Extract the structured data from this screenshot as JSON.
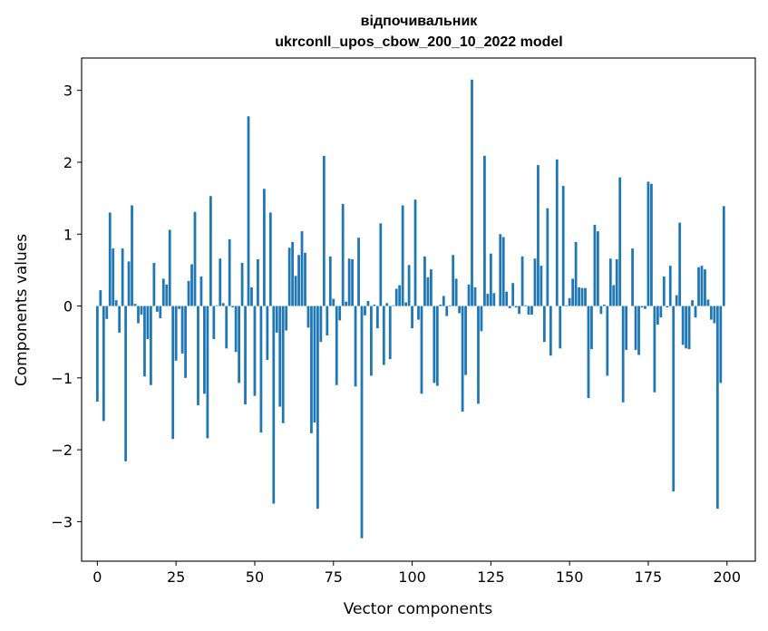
{
  "chart_data": {
    "type": "bar",
    "title": "відпочивальник",
    "subtitle": "ukrconll_upos_cbow_200_10_2022 model",
    "xlabel": "Vector components",
    "ylabel": "Components values",
    "xlim": [
      -5,
      209
    ],
    "ylim": [
      -3.55,
      3.45
    ],
    "xticks": [
      0,
      25,
      50,
      75,
      100,
      125,
      150,
      175,
      200
    ],
    "xtick_labels": [
      "0",
      "25",
      "50",
      "75",
      "100",
      "125",
      "150",
      "175",
      "200"
    ],
    "yticks": [
      -3,
      -2,
      -1,
      0,
      1,
      2,
      3
    ],
    "ytick_labels": [
      "−3",
      "−2",
      "−1",
      "0",
      "1",
      "2",
      "3"
    ],
    "grid": false,
    "bar_color": "#1f77b4",
    "x": [
      0,
      1,
      2,
      3,
      4,
      5,
      6,
      7,
      8,
      9,
      10,
      11,
      12,
      13,
      14,
      15,
      16,
      17,
      18,
      19,
      20,
      21,
      22,
      23,
      24,
      25,
      26,
      27,
      28,
      29,
      30,
      31,
      32,
      33,
      34,
      35,
      36,
      37,
      38,
      39,
      40,
      41,
      42,
      43,
      44,
      45,
      46,
      47,
      48,
      49,
      50,
      51,
      52,
      53,
      54,
      55,
      56,
      57,
      58,
      59,
      60,
      61,
      62,
      63,
      64,
      65,
      66,
      67,
      68,
      69,
      70,
      71,
      72,
      73,
      74,
      75,
      76,
      77,
      78,
      79,
      80,
      81,
      82,
      83,
      84,
      85,
      86,
      87,
      88,
      89,
      90,
      91,
      92,
      93,
      94,
      95,
      96,
      97,
      98,
      99,
      100,
      101,
      102,
      103,
      104,
      105,
      106,
      107,
      108,
      109,
      110,
      111,
      112,
      113,
      114,
      115,
      116,
      117,
      118,
      119,
      120,
      121,
      122,
      123,
      124,
      125,
      126,
      127,
      128,
      129,
      130,
      131,
      132,
      133,
      134,
      135,
      136,
      137,
      138,
      139,
      140,
      141,
      142,
      143,
      144,
      145,
      146,
      147,
      148,
      149,
      150,
      151,
      152,
      153,
      154,
      155,
      156,
      157,
      158,
      159,
      160,
      161,
      162,
      163,
      164,
      165,
      166,
      167,
      168,
      169,
      170,
      171,
      172,
      173,
      174,
      175,
      176,
      177,
      178,
      179,
      180,
      181,
      182,
      183,
      184,
      185,
      186,
      187,
      188,
      189,
      190,
      191,
      192,
      193,
      194,
      195,
      196,
      197,
      198,
      199
    ],
    "values": [
      -1.33,
      0.22,
      -1.6,
      -0.18,
      1.3,
      0.8,
      0.08,
      -0.37,
      0.8,
      -2.16,
      0.62,
      1.4,
      0.03,
      -0.24,
      -0.12,
      -0.98,
      -0.46,
      -1.1,
      0.6,
      -0.08,
      -0.17,
      0.38,
      0.3,
      1.06,
      -1.85,
      -0.76,
      -0.04,
      -0.66,
      -1.0,
      0.35,
      0.58,
      1.31,
      -1.38,
      0.41,
      -1.22,
      -1.84,
      1.53,
      -0.46,
      0.01,
      0.66,
      0.04,
      -0.59,
      0.93,
      -0.02,
      -0.64,
      -1.07,
      0.6,
      -1.37,
      2.64,
      0.26,
      -1.25,
      0.65,
      -1.76,
      1.63,
      -0.75,
      1.3,
      -2.75,
      -0.37,
      -1.4,
      -1.63,
      -0.34,
      0.81,
      0.89,
      0.42,
      0.71,
      1.04,
      0.74,
      -0.3,
      -1.77,
      -1.62,
      -2.82,
      -0.5,
      2.09,
      -0.41,
      0.69,
      0.1,
      -1.1,
      -0.2,
      1.42,
      0.06,
      0.66,
      0.65,
      -1.12,
      0.95,
      -3.23,
      -0.13,
      0.07,
      -0.97,
      0.02,
      -0.31,
      1.15,
      -0.82,
      0.04,
      -0.74,
      0.01,
      0.24,
      0.29,
      1.4,
      0.05,
      0.57,
      -0.31,
      1.48,
      -0.19,
      -1.22,
      0.69,
      0.4,
      0.51,
      -1.07,
      -1.11,
      0.02,
      0.14,
      -0.14,
      0.01,
      0.71,
      0.38,
      -0.1,
      -1.47,
      -0.96,
      0.3,
      3.15,
      0.26,
      -1.36,
      -0.35,
      2.09,
      0.17,
      0.73,
      0.18,
      0.0,
      1.0,
      0.96,
      0.2,
      -0.03,
      0.32,
      -0.02,
      -0.11,
      0.69,
      0.01,
      -0.12,
      -0.12,
      0.66,
      1.96,
      0.56,
      -0.5,
      1.36,
      -0.69,
      0.0,
      2.04,
      -0.59,
      1.67,
      0.01,
      0.11,
      0.38,
      0.89,
      0.26,
      0.25,
      0.25,
      -1.28,
      -0.6,
      1.13,
      1.04,
      -0.11,
      0.02,
      -0.97,
      0.66,
      0.29,
      0.65,
      1.79,
      -1.34,
      -0.61,
      0.0,
      0.8,
      -0.61,
      -0.68,
      -0.02,
      -0.04,
      1.73,
      1.7,
      -1.2,
      -0.26,
      -0.16,
      0.41,
      -0.02,
      0.56,
      -2.58,
      0.15,
      1.16,
      -0.54,
      -0.59,
      -0.6,
      0.08,
      -0.16,
      0.54,
      0.56,
      0.51,
      0.09,
      -0.19,
      -0.24,
      -2.82,
      -1.07,
      1.39
    ]
  }
}
